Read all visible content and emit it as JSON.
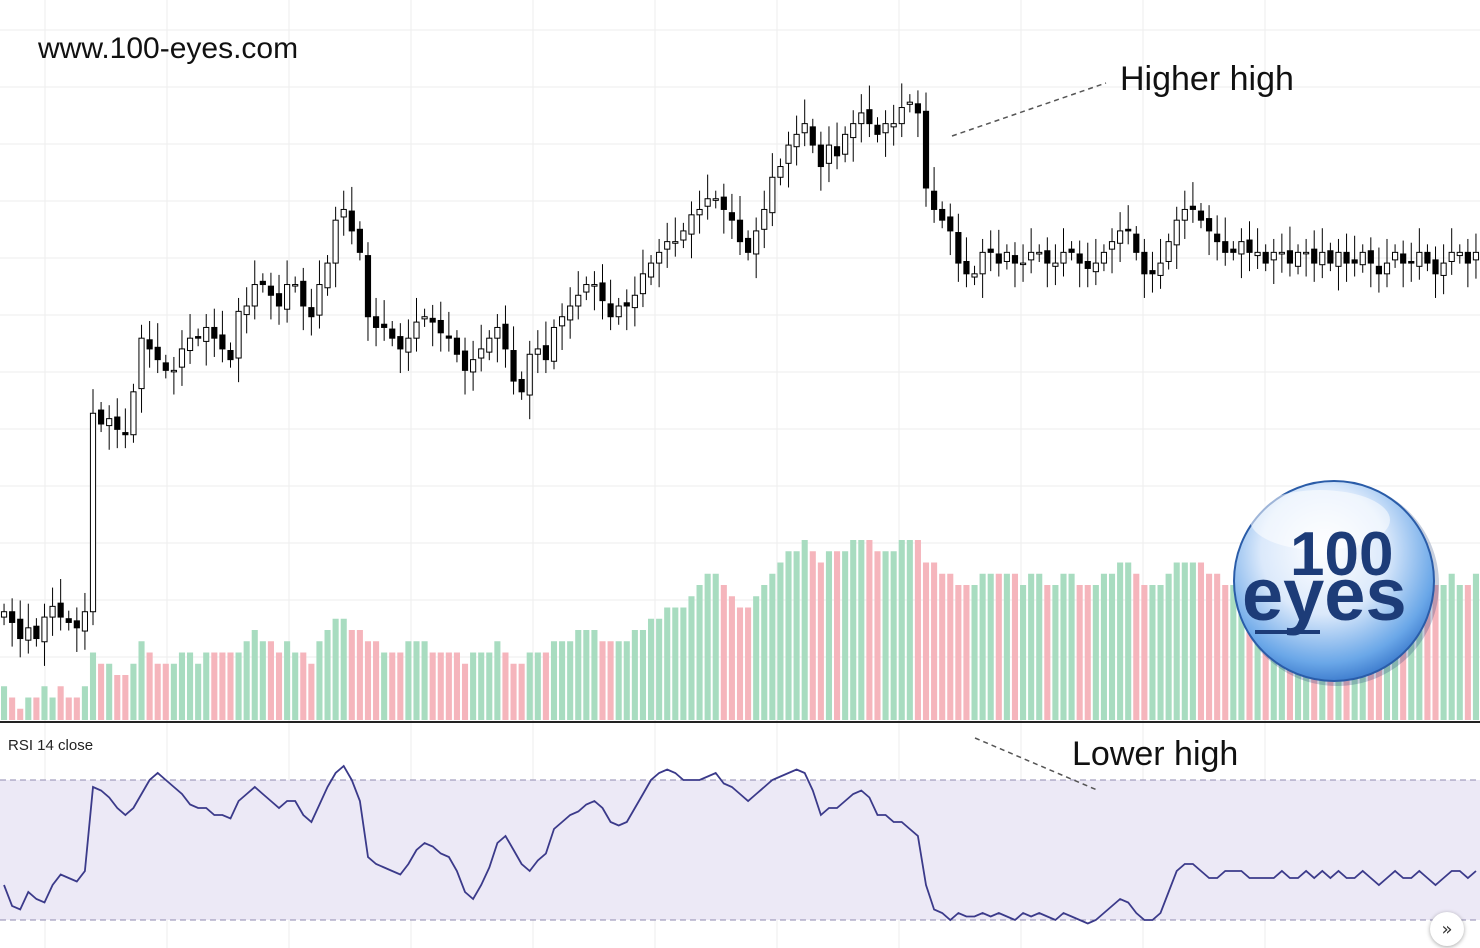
{
  "watermark_url": "www.100-eyes.com",
  "annotations": {
    "price": "Higher high",
    "rsi": "Lower high"
  },
  "rsi_label": "RSI 14 close",
  "logo": {
    "top": "100",
    "bottom": "eyes",
    "color": "#1d3c78"
  },
  "scroll_button": {
    "icon": "double-chevron-right-icon",
    "glyph": "»"
  },
  "colors": {
    "up": "#000000",
    "down": "#000000",
    "volume_up": "#a8dcc0",
    "volume_down": "#f5b5bc",
    "rsi_line": "#3b3a8a",
    "rsi_band": "#ece9f6"
  },
  "chart_data": [
    {
      "type": "candlestick",
      "panel": "price",
      "grid": true,
      "price_range": [
        0,
        100
      ],
      "series": [
        {
          "name": "",
          "values": [
            21,
            19,
            16,
            18,
            16,
            20,
            22,
            20,
            19,
            18,
            21,
            58,
            56,
            57,
            55,
            54,
            62,
            72,
            70,
            68,
            66,
            66,
            70,
            72,
            72,
            74,
            72,
            70,
            68,
            77,
            78,
            82,
            82,
            80,
            78,
            82,
            82,
            78,
            76,
            82,
            86,
            94,
            96,
            92,
            88,
            76,
            74,
            74,
            72,
            70,
            72,
            75,
            76,
            75,
            73,
            72,
            69,
            66,
            68,
            70,
            72,
            74,
            70,
            64,
            62,
            69,
            70,
            68,
            74,
            76,
            78,
            80,
            82,
            82,
            79,
            76,
            78,
            78,
            80,
            84,
            86,
            88,
            90,
            90,
            92,
            95,
            96,
            98,
            98,
            96,
            94,
            90,
            88,
            92,
            96,
            102,
            104,
            108,
            110,
            112,
            108,
            104,
            108,
            106,
            110,
            112,
            114,
            112,
            110,
            112,
            112,
            115,
            116,
            114,
            100,
            96,
            94,
            92,
            86,
            84,
            84,
            88,
            88,
            86,
            88,
            86,
            86,
            88,
            88,
            86,
            86,
            88,
            88,
            86,
            85,
            86,
            88,
            90,
            92,
            92,
            88,
            84,
            84,
            86,
            90,
            94,
            96,
            96,
            94,
            92,
            90,
            88,
            88,
            90,
            88,
            88,
            86,
            88,
            88,
            86,
            88,
            88,
            86,
            88,
            86,
            88,
            86,
            86,
            88,
            86,
            84,
            86,
            88,
            86,
            86,
            88,
            86,
            84,
            86,
            88,
            88,
            86,
            88
          ]
        }
      ]
    },
    {
      "type": "bar",
      "panel": "volume",
      "grid": false,
      "series": [
        {
          "name": "",
          "values": [
            3,
            2,
            1,
            2,
            2,
            3,
            2,
            3,
            2,
            2,
            3,
            6,
            5,
            5,
            4,
            4,
            5,
            7,
            6,
            5,
            5,
            5,
            6,
            6,
            5,
            6,
            6,
            6,
            6,
            6,
            7,
            8,
            7,
            7,
            6,
            7,
            6,
            6,
            5,
            7,
            8,
            9,
            9,
            8,
            8,
            7,
            7,
            6,
            6,
            6,
            7,
            7,
            7,
            6,
            6,
            6,
            6,
            5,
            6,
            6,
            6,
            7,
            6,
            5,
            5,
            6,
            6,
            6,
            7,
            7,
            7,
            8,
            8,
            8,
            7,
            7,
            7,
            7,
            8,
            8,
            9,
            9,
            10,
            10,
            10,
            11,
            12,
            13,
            13,
            12,
            11,
            10,
            10,
            11,
            12,
            13,
            14,
            15,
            15,
            16,
            15,
            14,
            15,
            15,
            15,
            16,
            16,
            16,
            15,
            15,
            15,
            16,
            16,
            16,
            14,
            14,
            13,
            13,
            12,
            12,
            12,
            13,
            13,
            13,
            13,
            13,
            12,
            13,
            13,
            12,
            12,
            13,
            13,
            12,
            12,
            12,
            13,
            13,
            14,
            14,
            13,
            12,
            12,
            12,
            13,
            14,
            14,
            14,
            14,
            13,
            13,
            12,
            12,
            13,
            12,
            12,
            12,
            12,
            13,
            12,
            12,
            13,
            12,
            12,
            12,
            13,
            12,
            12,
            13,
            12,
            12,
            12,
            13,
            12,
            12,
            13,
            12,
            12,
            12,
            13,
            12,
            12,
            13
          ]
        }
      ]
    },
    {
      "type": "line",
      "panel": "rsi",
      "grid": false,
      "ylim": [
        0,
        100
      ],
      "bands": [
        30,
        70
      ],
      "series": [
        {
          "name": "RSI 14 close",
          "values": [
            40,
            34,
            33,
            38,
            36,
            35,
            40,
            43,
            42,
            41,
            44,
            68,
            67,
            65,
            62,
            60,
            62,
            66,
            70,
            72,
            70,
            68,
            66,
            63,
            62,
            62,
            60,
            60,
            59,
            64,
            66,
            68,
            66,
            64,
            62,
            64,
            64,
            60,
            58,
            63,
            68,
            72,
            74,
            70,
            64,
            48,
            46,
            45,
            44,
            43,
            46,
            50,
            52,
            51,
            49,
            48,
            44,
            38,
            36,
            40,
            45,
            52,
            54,
            50,
            46,
            44,
            47,
            49,
            56,
            58,
            60,
            61,
            63,
            64,
            62,
            58,
            57,
            58,
            62,
            66,
            70,
            72,
            73,
            72,
            70,
            70,
            70,
            71,
            72,
            69,
            68,
            66,
            64,
            66,
            68,
            70,
            71,
            72,
            73,
            72,
            67,
            60,
            62,
            62,
            64,
            66,
            67,
            65,
            60,
            60,
            58,
            58,
            56,
            54,
            40,
            33,
            32,
            30,
            32,
            31,
            31,
            32,
            31,
            32,
            31,
            30,
            32,
            31,
            32,
            31,
            30,
            32,
            31,
            30,
            29,
            30,
            32,
            34,
            36,
            35,
            32,
            30,
            30,
            32,
            38,
            44,
            46,
            46,
            44,
            42,
            42,
            44,
            44,
            44,
            42,
            42,
            42,
            42,
            44,
            42,
            42,
            44,
            42,
            44,
            42,
            44,
            42,
            42,
            44,
            42,
            40,
            42,
            44,
            42,
            42,
            44,
            42,
            40,
            42,
            44,
            44,
            42,
            44
          ]
        }
      ]
    }
  ]
}
